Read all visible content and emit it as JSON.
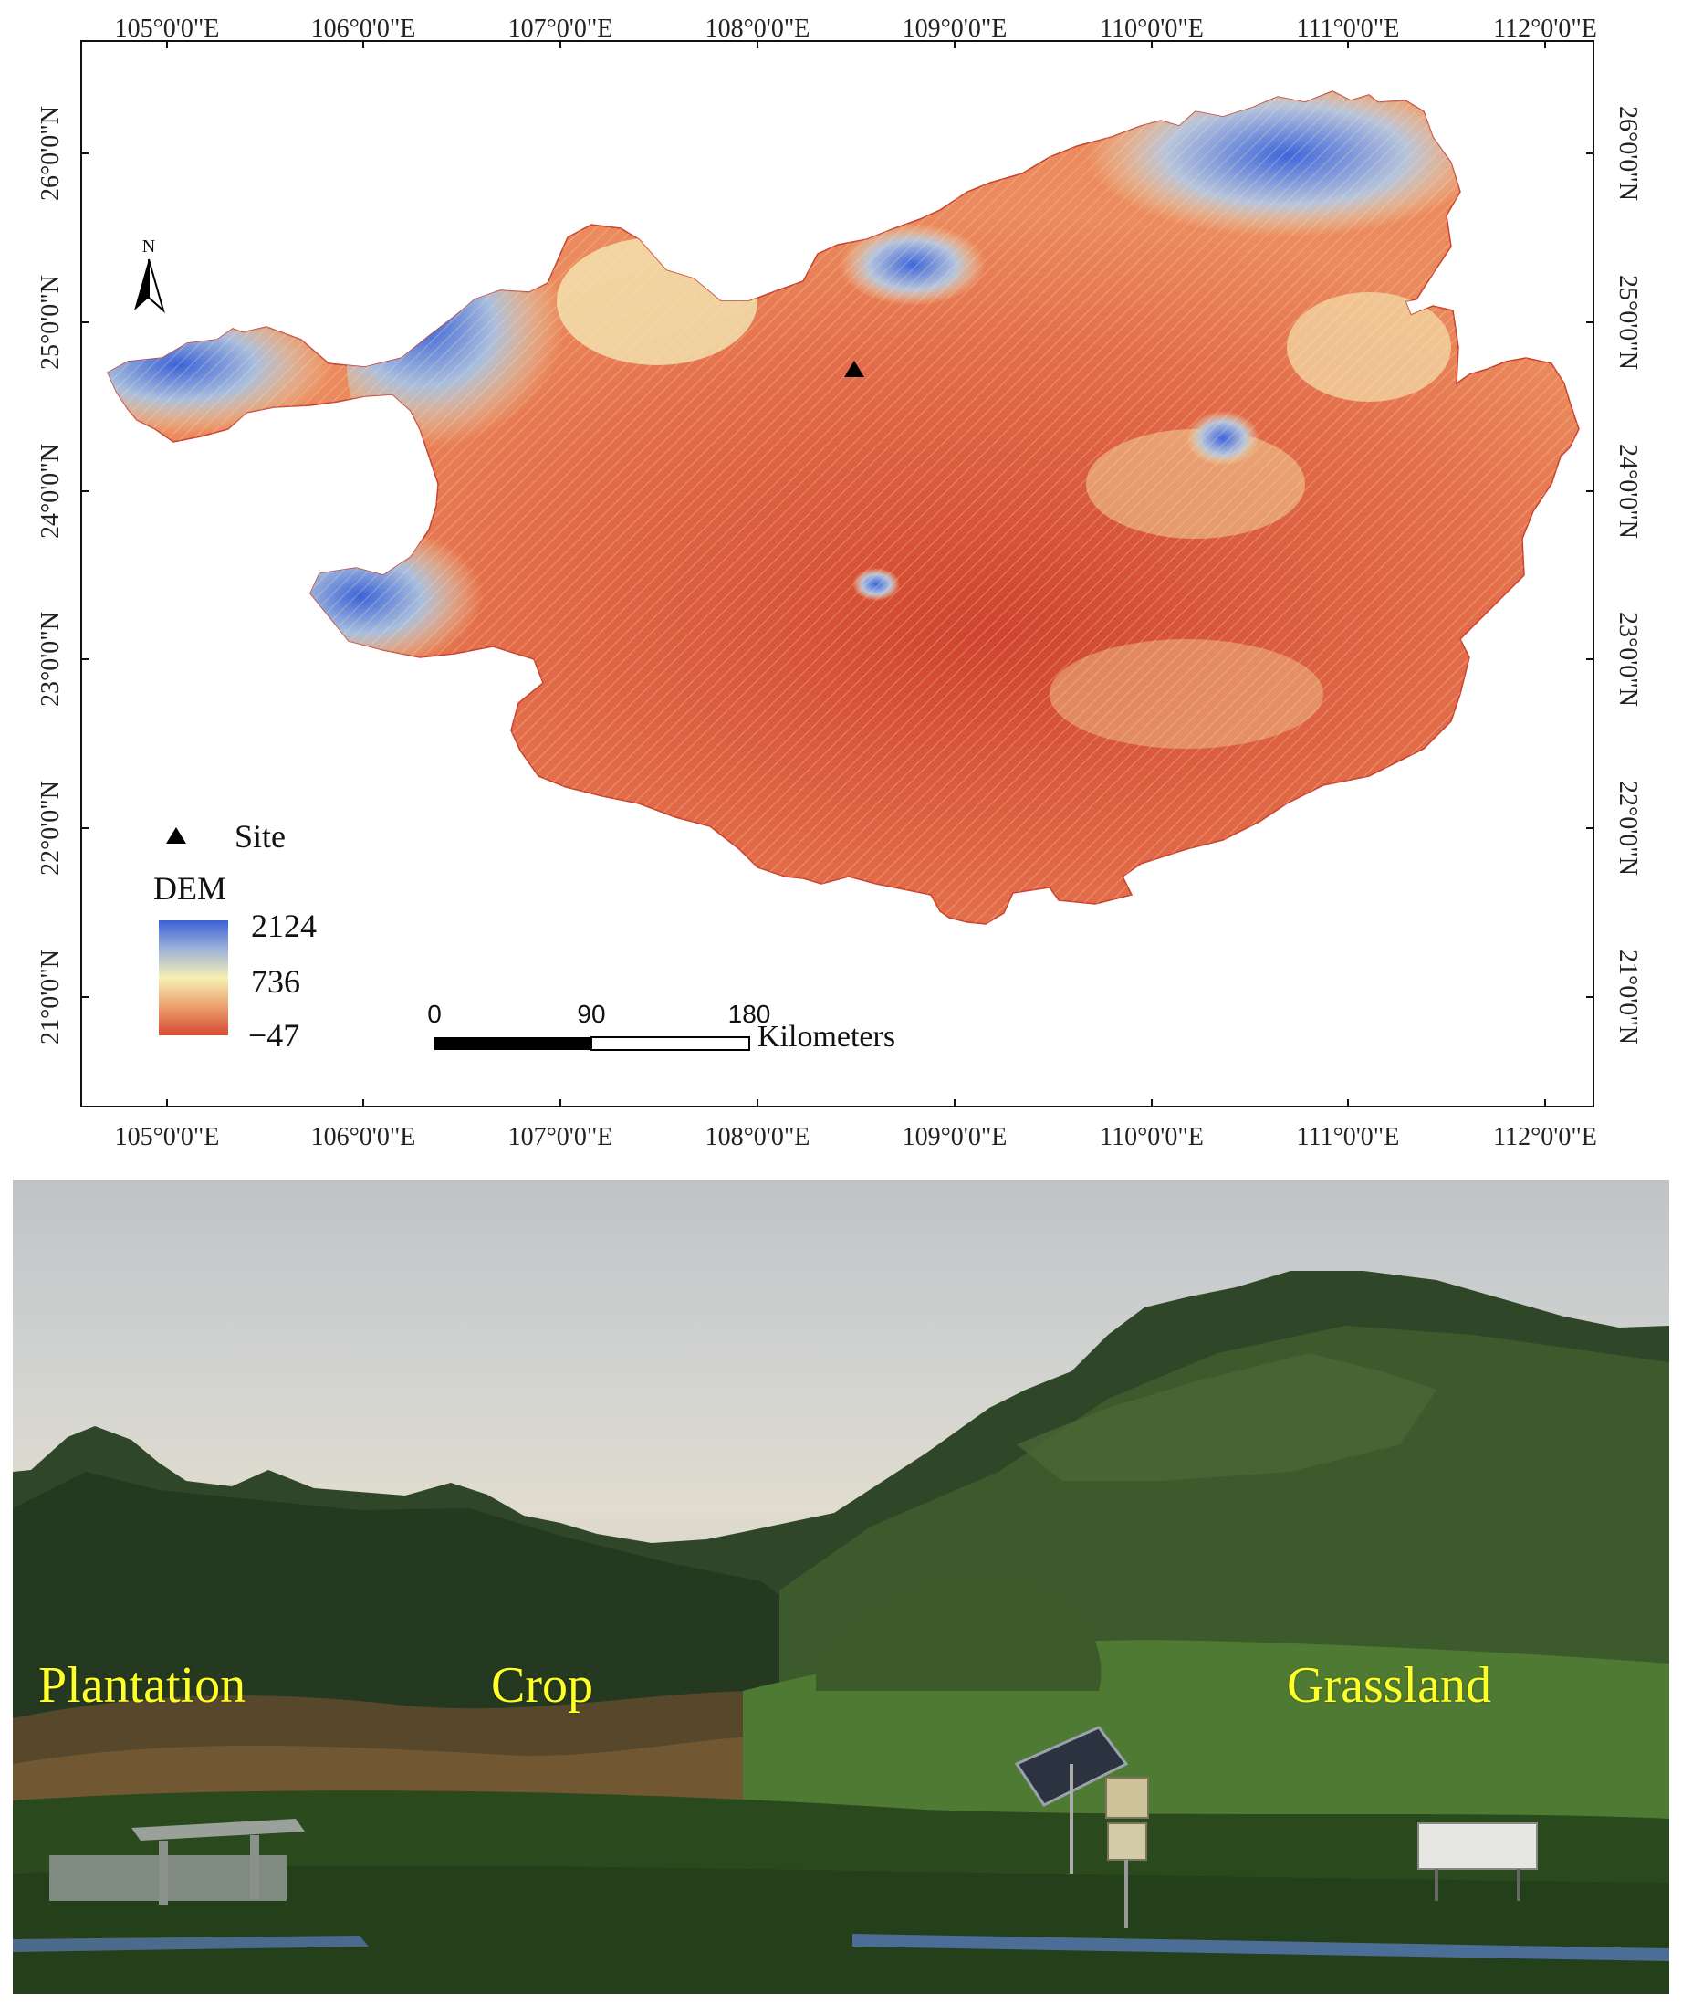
{
  "map": {
    "lon_labels": [
      "105°0'0\"E",
      "106°0'0\"E",
      "107°0'0\"E",
      "108°0'0\"E",
      "109°0'0\"E",
      "110°0'0\"E",
      "111°0'0\"E",
      "112°0'0\"E"
    ],
    "lat_labels": [
      "26°0'0\"N",
      "25°0'0\"N",
      "24°0'0\"N",
      "23°0'0\"N",
      "22°0'0\"N",
      "21°0'0\"N"
    ],
    "north_arrow": "N",
    "site_symbol": "black-triangle",
    "site_label": "Site",
    "legend_title": "DEM",
    "dem_max": "2124",
    "dem_mid": "736",
    "dem_min": "−47",
    "dem_colors": {
      "high": "#3b5fd6",
      "mid": "#f6f0b2",
      "low": "#d64a34"
    },
    "scale_ticks": [
      "0",
      "90",
      "180"
    ],
    "scale_unit": "Kilometers"
  },
  "photo": {
    "labels": [
      "Plantation",
      "Crop",
      "Grassland"
    ],
    "label_color": "#ffff2a"
  }
}
